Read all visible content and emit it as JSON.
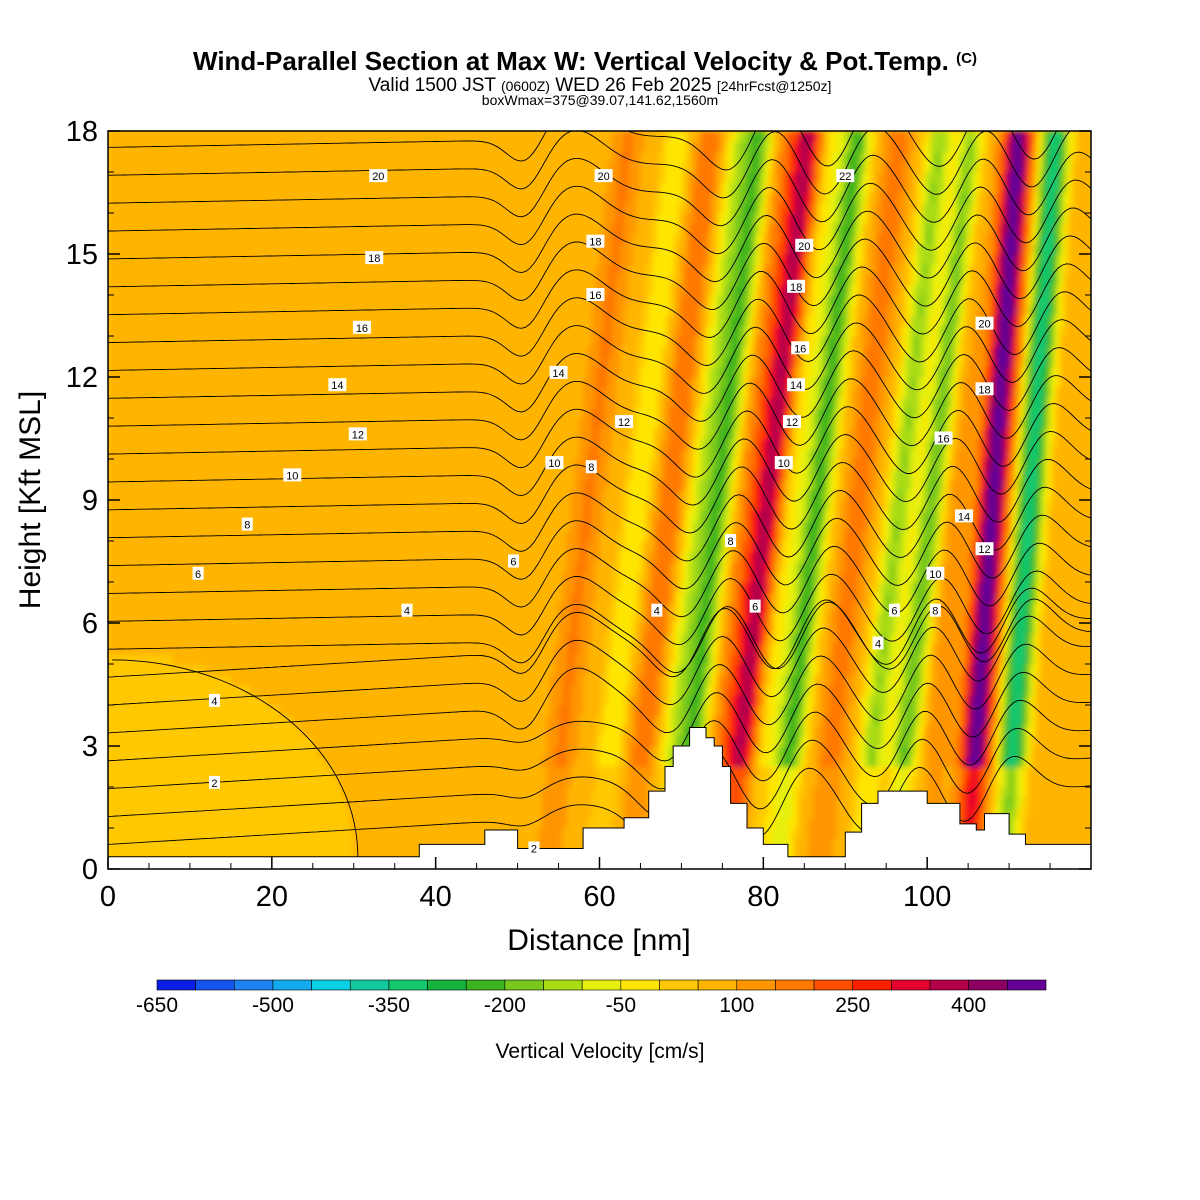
{
  "chart_data": {
    "type": "heatmap",
    "title": "Wind-Parallel Section at Max W: Vertical Velocity & Pot.Temp.",
    "title_mark": "(C)",
    "subtitle_parts": [
      "Valid 1500 JST",
      "(0600Z)",
      "WED 26 Feb 2025",
      "[24hrFcst@1250z]"
    ],
    "subtitle2": "boxWmax=375@39.07,141.62,1560m",
    "xlabel": "Distance [nm]",
    "ylabel": "Height [Kft MSL]",
    "xlim": [
      0,
      120
    ],
    "ylim": [
      0,
      18
    ],
    "xticks": [
      0,
      20,
      40,
      60,
      80,
      100
    ],
    "yticks": [
      0,
      3,
      6,
      9,
      12,
      15,
      18
    ],
    "grid": false,
    "colorbar": {
      "label": "Vertical Velocity [cm/s]",
      "levels": [
        -650,
        -600,
        -550,
        -500,
        -450,
        -400,
        -350,
        -300,
        -250,
        -200,
        -150,
        -100,
        -50,
        0,
        50,
        100,
        150,
        200,
        250,
        300,
        350,
        400,
        450
      ],
      "tick_values": [
        -650,
        -500,
        -350,
        -200,
        -50,
        100,
        250,
        400
      ],
      "tick_labels": [
        "-650",
        "-500",
        "-350",
        "-200",
        "-50",
        "100",
        "250",
        "400"
      ],
      "colors": [
        "#0a1ee8",
        "#1455f0",
        "#1e82f0",
        "#14aaf0",
        "#0ad2e6",
        "#14c8a0",
        "#14c86e",
        "#14b43c",
        "#3cb41e",
        "#78c81e",
        "#aadc14",
        "#e6f00a",
        "#ffe600",
        "#ffc800",
        "#ffb400",
        "#ff9600",
        "#ff7800",
        "#ff5000",
        "#ff1e00",
        "#e6002d",
        "#b4004b",
        "#8c0064",
        "#640096"
      ]
    },
    "contours": {
      "name": "Pot.Temp.",
      "labels": [
        {
          "x": 13.0,
          "y": 2.1,
          "text": "2"
        },
        {
          "x": 52.0,
          "y": 0.5,
          "text": "2"
        },
        {
          "x": 13.0,
          "y": 4.1,
          "text": "4"
        },
        {
          "x": 36.5,
          "y": 6.3,
          "text": "4"
        },
        {
          "x": 67.0,
          "y": 6.3,
          "text": "4"
        },
        {
          "x": 94.0,
          "y": 5.5,
          "text": "4"
        },
        {
          "x": 11.0,
          "y": 7.2,
          "text": "6"
        },
        {
          "x": 49.5,
          "y": 7.5,
          "text": "6"
        },
        {
          "x": 79.0,
          "y": 6.4,
          "text": "6"
        },
        {
          "x": 96.0,
          "y": 6.3,
          "text": "6"
        },
        {
          "x": 17.0,
          "y": 8.4,
          "text": "8"
        },
        {
          "x": 59.0,
          "y": 9.8,
          "text": "8"
        },
        {
          "x": 76.0,
          "y": 8.0,
          "text": "8"
        },
        {
          "x": 101.0,
          "y": 6.3,
          "text": "8"
        },
        {
          "x": 22.5,
          "y": 9.6,
          "text": "10"
        },
        {
          "x": 54.5,
          "y": 9.9,
          "text": "10"
        },
        {
          "x": 82.5,
          "y": 9.9,
          "text": "10"
        },
        {
          "x": 101.0,
          "y": 7.2,
          "text": "10"
        },
        {
          "x": 30.5,
          "y": 10.6,
          "text": "12"
        },
        {
          "x": 63.0,
          "y": 10.9,
          "text": "12"
        },
        {
          "x": 83.5,
          "y": 10.9,
          "text": "12"
        },
        {
          "x": 107.0,
          "y": 7.8,
          "text": "12"
        },
        {
          "x": 28.0,
          "y": 11.8,
          "text": "14"
        },
        {
          "x": 55.0,
          "y": 12.1,
          "text": "14"
        },
        {
          "x": 84.0,
          "y": 11.8,
          "text": "14"
        },
        {
          "x": 104.5,
          "y": 8.6,
          "text": "14"
        },
        {
          "x": 31.0,
          "y": 13.2,
          "text": "16"
        },
        {
          "x": 59.5,
          "y": 14.0,
          "text": "16"
        },
        {
          "x": 84.5,
          "y": 12.7,
          "text": "16"
        },
        {
          "x": 102.0,
          "y": 10.5,
          "text": "16"
        },
        {
          "x": 32.5,
          "y": 14.9,
          "text": "18"
        },
        {
          "x": 59.5,
          "y": 15.3,
          "text": "18"
        },
        {
          "x": 84.0,
          "y": 14.2,
          "text": "18"
        },
        {
          "x": 107.0,
          "y": 11.7,
          "text": "18"
        },
        {
          "x": 33.0,
          "y": 16.9,
          "text": "20"
        },
        {
          "x": 60.5,
          "y": 16.9,
          "text": "20"
        },
        {
          "x": 85.0,
          "y": 15.2,
          "text": "20"
        },
        {
          "x": 107.0,
          "y": 13.3,
          "text": "20"
        },
        {
          "x": 90.0,
          "y": 16.9,
          "text": "22"
        }
      ]
    },
    "terrain": [
      [
        0,
        0.3
      ],
      [
        38,
        0.3
      ],
      [
        38,
        0.6
      ],
      [
        46,
        0.6
      ],
      [
        46,
        0.95
      ],
      [
        50,
        0.95
      ],
      [
        50,
        0.5
      ],
      [
        58,
        0.5
      ],
      [
        58,
        1.0
      ],
      [
        63,
        1.0
      ],
      [
        63,
        1.25
      ],
      [
        66,
        1.25
      ],
      [
        66,
        1.9
      ],
      [
        68,
        1.9
      ],
      [
        68,
        2.5
      ],
      [
        69,
        2.5
      ],
      [
        69,
        3.0
      ],
      [
        71,
        3.0
      ],
      [
        71,
        3.45
      ],
      [
        73,
        3.45
      ],
      [
        73,
        3.2
      ],
      [
        74,
        3.2
      ],
      [
        74,
        3.0
      ],
      [
        75,
        3.0
      ],
      [
        75,
        2.5
      ],
      [
        76,
        2.5
      ],
      [
        76,
        1.6
      ],
      [
        78,
        1.6
      ],
      [
        78,
        1.0
      ],
      [
        80,
        1.0
      ],
      [
        80,
        0.6
      ],
      [
        83,
        0.6
      ],
      [
        83,
        0.3
      ],
      [
        90,
        0.3
      ],
      [
        90,
        0.9
      ],
      [
        92,
        0.9
      ],
      [
        92,
        1.6
      ],
      [
        94,
        1.6
      ],
      [
        94,
        1.9
      ],
      [
        100,
        1.9
      ],
      [
        100,
        1.6
      ],
      [
        104,
        1.6
      ],
      [
        104,
        1.1
      ],
      [
        106,
        1.1
      ],
      [
        106,
        0.95
      ],
      [
        107,
        0.95
      ],
      [
        107,
        1.35
      ],
      [
        110,
        1.35
      ],
      [
        110,
        0.85
      ],
      [
        112,
        0.85
      ],
      [
        112,
        0.6
      ],
      [
        120,
        0.6
      ],
      [
        120,
        0
      ]
    ]
  }
}
